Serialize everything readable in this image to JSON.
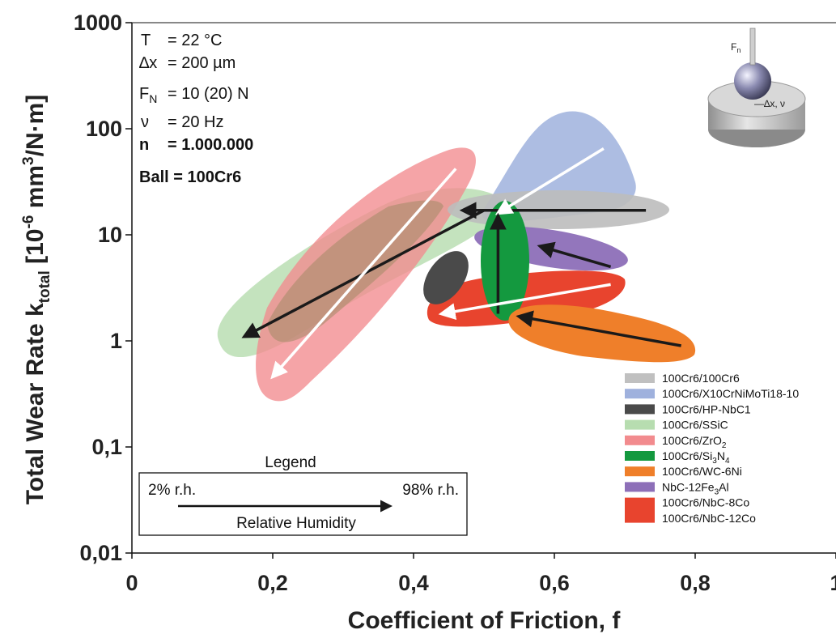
{
  "chart_data": {
    "type": "scatter",
    "xlabel": "Coefficient of Friction, f",
    "ylabel": "Total Wear Rate k_total [10^-6 mm^3/N·m]",
    "xlim": [
      0,
      1
    ],
    "ylim": [
      0.01,
      1000
    ],
    "yscale": "log",
    "x_ticks": [
      "0",
      "0,2",
      "0,4",
      "0,6",
      "0,8",
      "1"
    ],
    "y_ticks": [
      "0,01",
      "0,1",
      "1",
      "10",
      "100",
      "1000"
    ],
    "grid": false,
    "legend_position": "bottom-right",
    "conditions": {
      "T": "= 22 °C",
      "dx": "= 200 µm",
      "FN": "= 10 (20) N",
      "nu": "= 20 Hz",
      "n": "= 1.000.000",
      "ball": "Ball = 100Cr6"
    },
    "humidity_legend": {
      "title": "Legend",
      "low": "2% r.h.",
      "high": "98% r.h.",
      "caption": "Relative Humidity"
    },
    "inset_labels": {
      "force": "Fn",
      "motion": "Δx, ν"
    },
    "series": [
      {
        "name": "100Cr6/100Cr6",
        "color": "#c0c0c0",
        "from": {
          "x": 0.73,
          "y": 17
        },
        "to": {
          "x": 0.47,
          "y": 17
        }
      },
      {
        "name": "100Cr6/X10CrNiMoTi18-10",
        "color": "#9fb1dd",
        "from": {
          "x": 0.67,
          "y": 65
        },
        "to": {
          "x": 0.52,
          "y": 16
        }
      },
      {
        "name": "100Cr6/HP-NbC1",
        "color": "#4a4a4a",
        "from": null,
        "to": null
      },
      {
        "name": "100Cr6/SSiC",
        "color": "#b7ddb0",
        "from": {
          "x": 0.5,
          "y": 17
        },
        "to": {
          "x": 0.16,
          "y": 1.1
        }
      },
      {
        "name": "100Cr6/ZrO2",
        "color": "#f28b8e",
        "from": {
          "x": 0.46,
          "y": 42
        },
        "to": {
          "x": 0.2,
          "y": 0.46
        }
      },
      {
        "name": "100Cr6/Si3N4",
        "color": "#14993f",
        "from": {
          "x": 0.52,
          "y": 1.8
        },
        "to": {
          "x": 0.52,
          "y": 15
        }
      },
      {
        "name": "100Cr6/WC-6Ni",
        "color": "#ef7f2a",
        "from": {
          "x": 0.78,
          "y": 0.9
        },
        "to": {
          "x": 0.55,
          "y": 1.7
        }
      },
      {
        "name": "NbC-12Fe3Al",
        "color": "#8d6fb8",
        "from": {
          "x": 0.68,
          "y": 5
        },
        "to": {
          "x": 0.58,
          "y": 7.8
        }
      },
      {
        "name": "100Cr6/NbC-8Co",
        "color": "#e8442e",
        "from": {
          "x": 0.68,
          "y": 3.4
        },
        "to": {
          "x": 0.44,
          "y": 1.8
        }
      },
      {
        "name": "100Cr6/NbC-12Co",
        "color": "#e8442e",
        "from": null,
        "to": null
      }
    ]
  }
}
